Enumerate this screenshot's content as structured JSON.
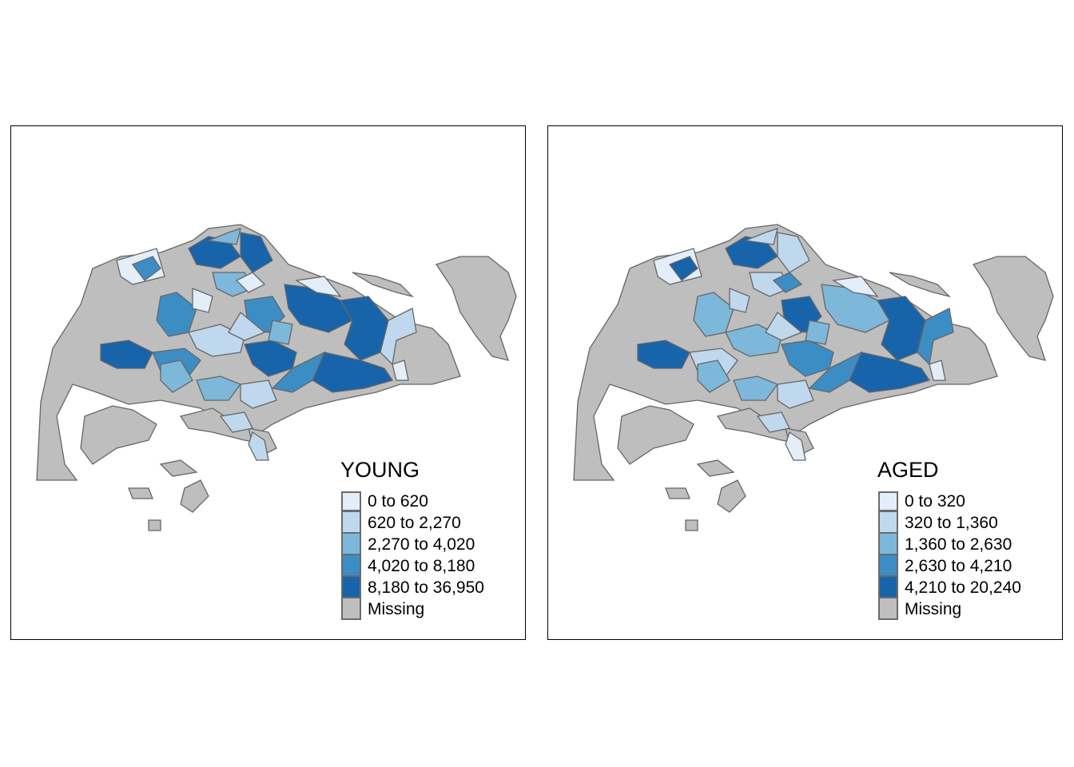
{
  "colors": {
    "class1": "#E3EEF9",
    "class2": "#BFD8ED",
    "class3": "#7DB8DA",
    "class4": "#3D8DC5",
    "class5": "#1764AB",
    "missing": "#BEBEBE",
    "border": "#666666"
  },
  "maps": [
    {
      "title": "YOUNG",
      "legend": [
        {
          "label": "0 to 620",
          "class": "class1"
        },
        {
          "label": "620 to 2,270",
          "class": "class2"
        },
        {
          "label": "2,270 to 4,020",
          "class": "class3"
        },
        {
          "label": "4,020 to 8,180",
          "class": "class4"
        },
        {
          "label": "8,180 to 36,950",
          "class": "class5"
        },
        {
          "label": "Missing",
          "class": "missing"
        }
      ]
    },
    {
      "title": "AGED",
      "legend": [
        {
          "label": "0 to 320",
          "class": "class1"
        },
        {
          "label": "320 to 1,360",
          "class": "class2"
        },
        {
          "label": "1,360 to 2,630",
          "class": "class3"
        },
        {
          "label": "2,630 to 4,210",
          "class": "class4"
        },
        {
          "label": "4,210 to 20,240",
          "class": "class5"
        },
        {
          "label": "Missing",
          "class": "missing"
        }
      ]
    }
  ]
}
